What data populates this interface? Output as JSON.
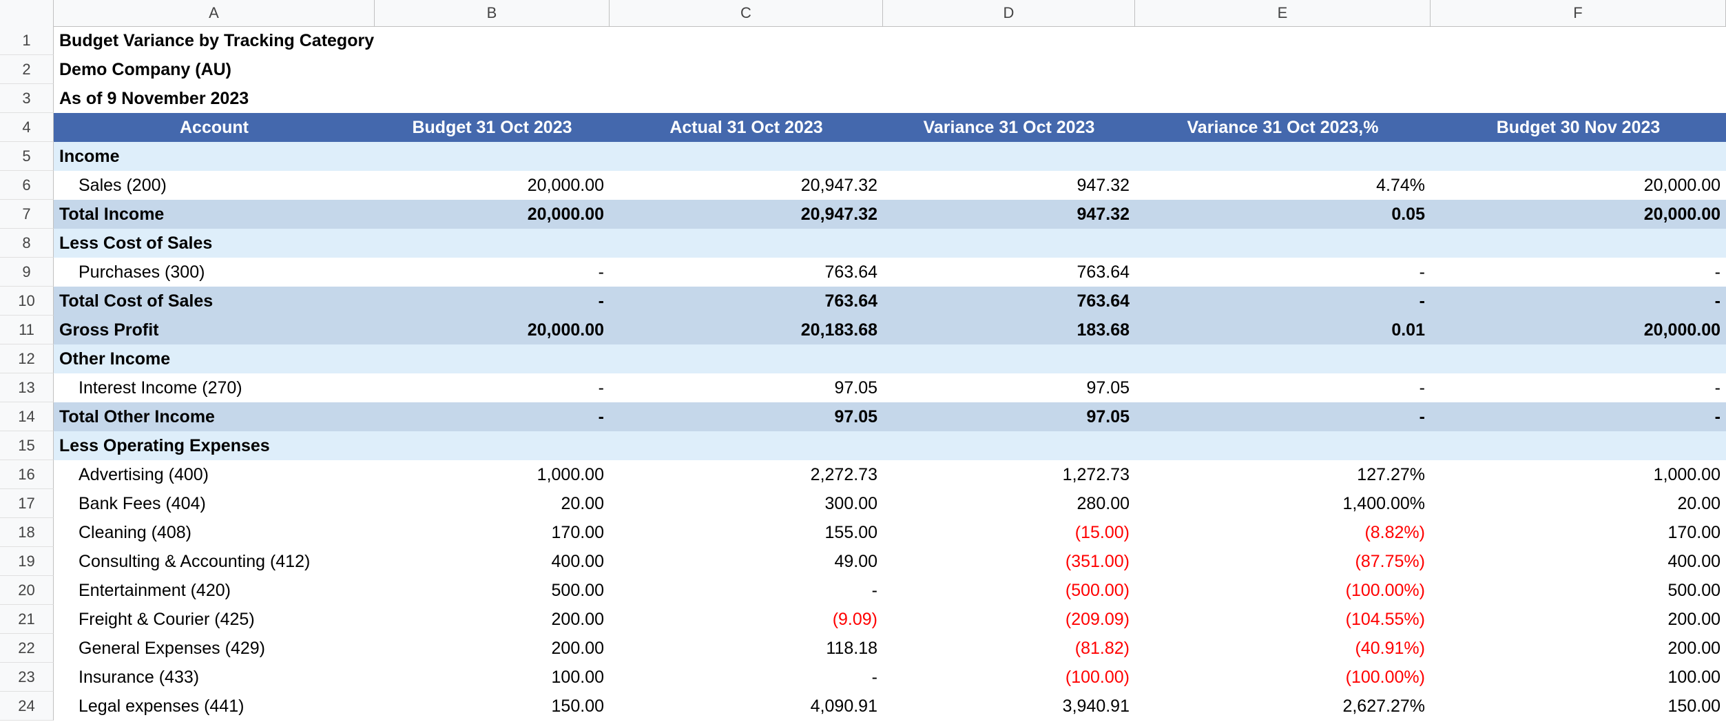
{
  "sheet": {
    "columns": [
      "A",
      "B",
      "C",
      "D",
      "E",
      "F"
    ],
    "row_numbers": [
      "1",
      "2",
      "3",
      "4",
      "5",
      "6",
      "7",
      "8",
      "9",
      "10",
      "11",
      "12",
      "13",
      "14",
      "15",
      "16",
      "17",
      "18",
      "19",
      "20",
      "21",
      "22",
      "23",
      "24"
    ]
  },
  "report": {
    "title": "Budget Variance by Tracking Category",
    "company": "Demo Company (AU)",
    "as_of": "As of 9 November 2023"
  },
  "table": {
    "headers": [
      "Account",
      "Budget 31 Oct 2023",
      "Actual 31 Oct 2023",
      "Variance 31 Oct 2023",
      "Variance 31 Oct 2023,%",
      "Budget 30 Nov 2023"
    ],
    "rows": [
      {
        "kind": "section",
        "cells": [
          "Income",
          "",
          "",
          "",
          "",
          ""
        ]
      },
      {
        "kind": "line",
        "cells": [
          "Sales (200)",
          "20,000.00",
          "20,947.32",
          "947.32",
          "4.74%",
          "20,000.00"
        ]
      },
      {
        "kind": "total",
        "cells": [
          "Total Income",
          "20,000.00",
          "20,947.32",
          "947.32",
          "0.05",
          "20,000.00"
        ]
      },
      {
        "kind": "section",
        "cells": [
          "Less Cost of Sales",
          "",
          "",
          "",
          "",
          ""
        ]
      },
      {
        "kind": "line",
        "cells": [
          "Purchases (300)",
          "-",
          "763.64",
          "763.64",
          "-",
          "-"
        ]
      },
      {
        "kind": "total",
        "cells": [
          "Total Cost of Sales",
          "-",
          "763.64",
          "763.64",
          "-",
          "-"
        ]
      },
      {
        "kind": "total",
        "cells": [
          "Gross Profit",
          "20,000.00",
          "20,183.68",
          "183.68",
          "0.01",
          "20,000.00"
        ]
      },
      {
        "kind": "section",
        "cells": [
          "Other Income",
          "",
          "",
          "",
          "",
          ""
        ]
      },
      {
        "kind": "line",
        "cells": [
          "Interest Income (270)",
          "-",
          "97.05",
          "97.05",
          "-",
          "-"
        ]
      },
      {
        "kind": "total",
        "cells": [
          "Total Other Income",
          "-",
          "97.05",
          "97.05",
          "-",
          "-"
        ]
      },
      {
        "kind": "section",
        "cells": [
          "Less Operating Expenses",
          "",
          "",
          "",
          "",
          ""
        ]
      },
      {
        "kind": "line",
        "cells": [
          "Advertising (400)",
          "1,000.00",
          "2,272.73",
          "1,272.73",
          "127.27%",
          "1,000.00"
        ]
      },
      {
        "kind": "line",
        "cells": [
          "Bank Fees (404)",
          "20.00",
          "300.00",
          "280.00",
          "1,400.00%",
          "20.00"
        ]
      },
      {
        "kind": "line",
        "cells": [
          "Cleaning (408)",
          "170.00",
          "155.00",
          "(15.00)",
          "(8.82%)",
          "170.00"
        ]
      },
      {
        "kind": "line",
        "cells": [
          "Consulting & Accounting (412)",
          "400.00",
          "49.00",
          "(351.00)",
          "(87.75%)",
          "400.00"
        ]
      },
      {
        "kind": "line",
        "cells": [
          "Entertainment (420)",
          "500.00",
          "-",
          "(500.00)",
          "(100.00%)",
          "500.00"
        ]
      },
      {
        "kind": "line",
        "cells": [
          "Freight & Courier (425)",
          "200.00",
          "(9.09)",
          "(209.09)",
          "(104.55%)",
          "200.00"
        ]
      },
      {
        "kind": "line",
        "cells": [
          "General Expenses (429)",
          "200.00",
          "118.18",
          "(81.82)",
          "(40.91%)",
          "200.00"
        ]
      },
      {
        "kind": "line",
        "cells": [
          "Insurance (433)",
          "100.00",
          "-",
          "(100.00)",
          "(100.00%)",
          "100.00"
        ]
      },
      {
        "kind": "line",
        "cells": [
          "Legal expenses (441)",
          "150.00",
          "4,090.91",
          "3,940.91",
          "2,627.27%",
          "150.00"
        ]
      }
    ]
  },
  "colors": {
    "header_bg": "#4468ad",
    "section_bg": "#deeefa",
    "total_bg": "#c5d7ea",
    "negative": "#ff0000"
  }
}
